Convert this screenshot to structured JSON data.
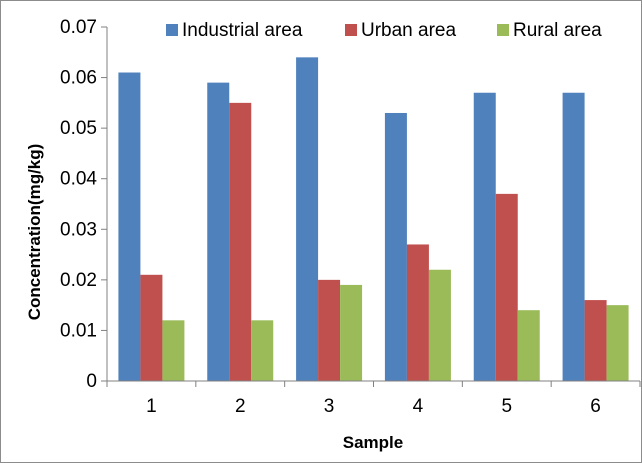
{
  "chart_data": {
    "type": "bar",
    "xlabel": "Sample",
    "ylabel": "Concentration(mg/kg)",
    "categories": [
      "1",
      "2",
      "3",
      "4",
      "5",
      "6"
    ],
    "ylim": [
      0,
      0.07
    ],
    "yticks": [
      0,
      0.01,
      0.02,
      0.03,
      0.04,
      0.05,
      0.06,
      0.07
    ],
    "ytick_labels": [
      "0",
      "0.01",
      "0.02",
      "0.03",
      "0.04",
      "0.05",
      "0.06",
      "0.07"
    ],
    "grid": false,
    "legend_position": "top",
    "series": [
      {
        "name": "Industrial area",
        "color": "#4f81bd",
        "values": [
          0.061,
          0.059,
          0.064,
          0.053,
          0.057,
          0.057
        ]
      },
      {
        "name": "Urban area",
        "color": "#c0504d",
        "values": [
          0.021,
          0.055,
          0.02,
          0.027,
          0.037,
          0.016
        ]
      },
      {
        "name": "Rural area",
        "color": "#9bbb59",
        "values": [
          0.012,
          0.012,
          0.019,
          0.022,
          0.014,
          0.015
        ]
      }
    ]
  }
}
